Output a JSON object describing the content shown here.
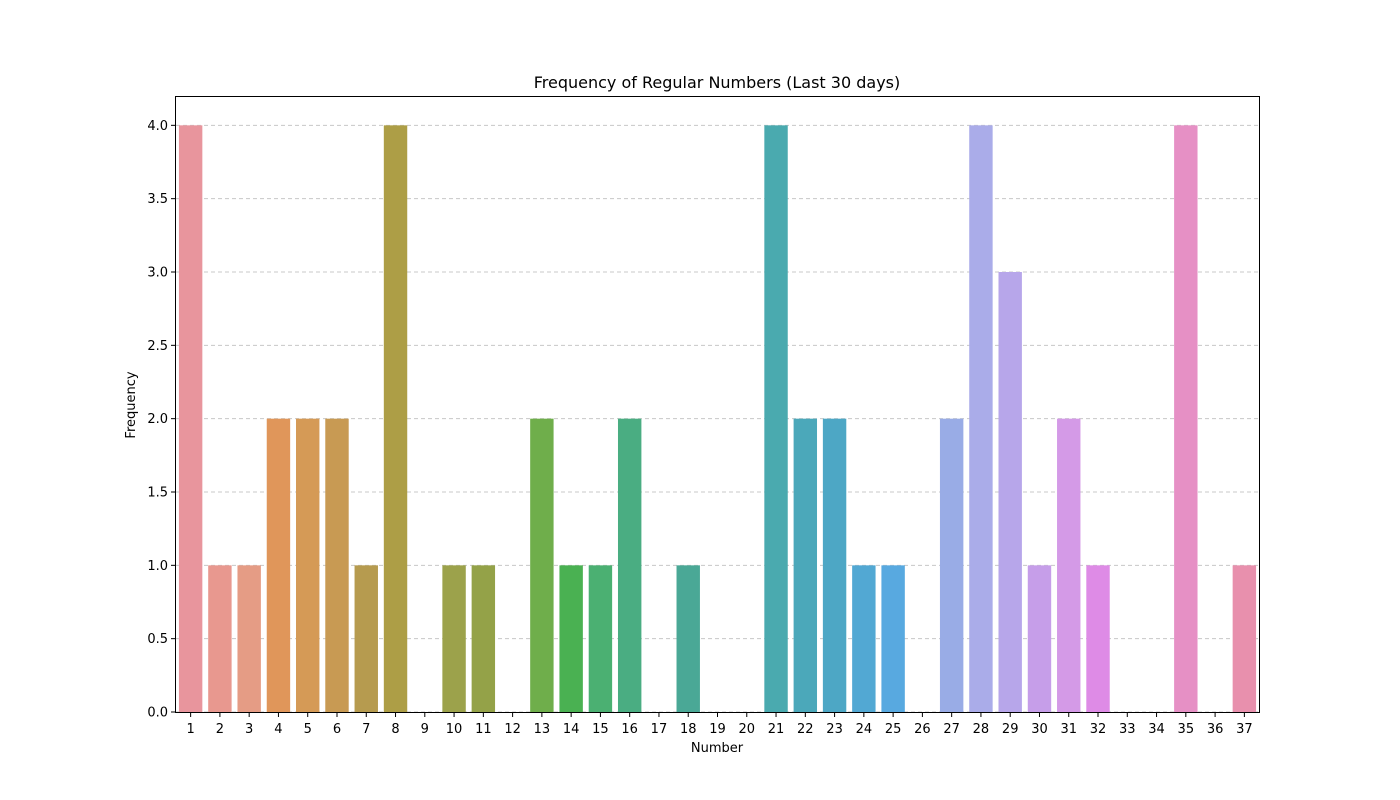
{
  "chart_data": {
    "type": "bar",
    "title": "Frequency of Regular Numbers (Last 30 days)",
    "xlabel": "Number",
    "ylabel": "Frequency",
    "ylim": [
      0,
      4.2
    ],
    "yticks": [
      "0.0",
      "0.5",
      "1.0",
      "1.5",
      "2.0",
      "2.5",
      "3.0",
      "3.5",
      "4.0"
    ],
    "grid": "y-dashed",
    "categories": [
      "1",
      "2",
      "3",
      "4",
      "5",
      "6",
      "7",
      "8",
      "9",
      "10",
      "11",
      "12",
      "13",
      "14",
      "15",
      "16",
      "17",
      "18",
      "19",
      "20",
      "21",
      "22",
      "23",
      "24",
      "25",
      "26",
      "27",
      "28",
      "29",
      "30",
      "31",
      "32",
      "33",
      "34",
      "35",
      "36",
      "37"
    ],
    "values": [
      4,
      1,
      1,
      2,
      2,
      2,
      1,
      4,
      0,
      1,
      1,
      0,
      2,
      1,
      1,
      2,
      0,
      1,
      0,
      0,
      4,
      2,
      2,
      1,
      1,
      0,
      2,
      4,
      3,
      1,
      2,
      1,
      0,
      0,
      4,
      0,
      1
    ],
    "colors": [
      "#e8959d",
      "#e8988f",
      "#e59c85",
      "#e0965a",
      "#d59a56",
      "#c89a53",
      "#b69b4f",
      "#ad9e46",
      "#a3a04b",
      "#9ca24b",
      "#94a248",
      "#8aa548",
      "#6fae4b",
      "#4ab152",
      "#4bb072",
      "#4aad82",
      "#49aa8e",
      "#4aa896",
      "#4aa8a3",
      "#4aa8ad",
      "#4aaaaf",
      "#4ba8ba",
      "#4da7c5",
      "#52a8d3",
      "#58a9e0",
      "#7ba7e4",
      "#99ace6",
      "#aaace9",
      "#b7a6ea",
      "#c69ee9",
      "#d49ae7",
      "#de8be6",
      "#e28bd9",
      "#e58fcf",
      "#e690c5",
      "#e890b8",
      "#e890ad"
    ]
  }
}
